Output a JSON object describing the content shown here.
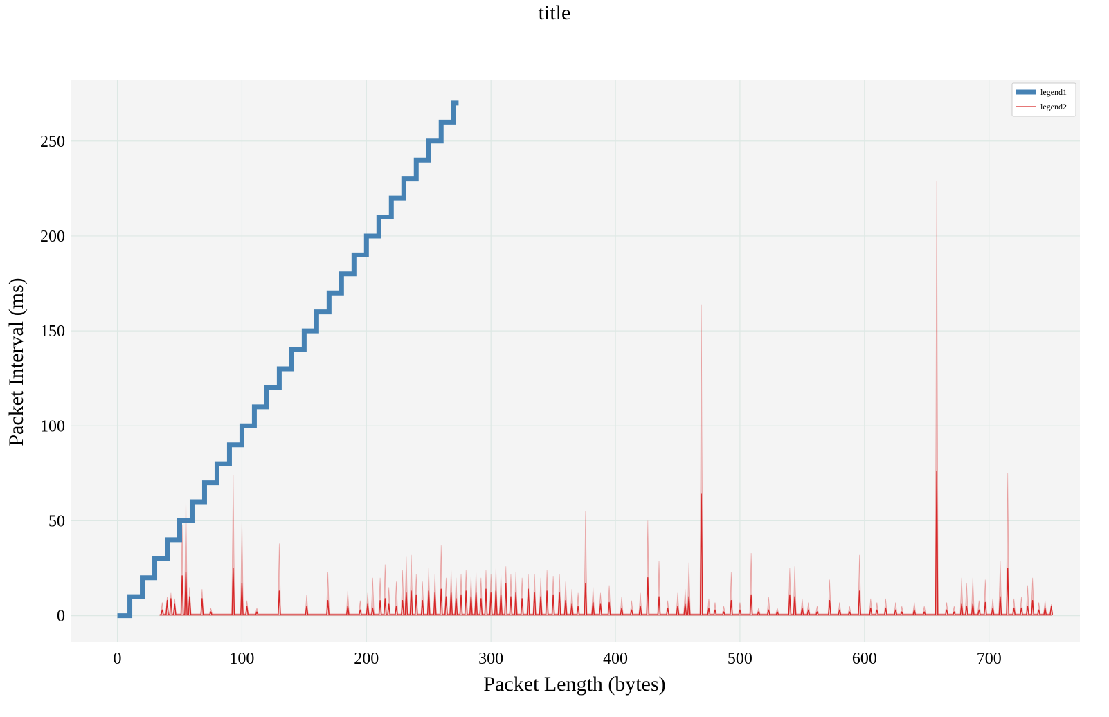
{
  "chart_data": {
    "type": "line",
    "title": "title",
    "xlabel": "Packet Length (bytes)",
    "ylabel": "Packet Interval (ms)",
    "xlim": [
      -37,
      773
    ],
    "ylim": [
      -14,
      282
    ],
    "x_ticks": [
      "0",
      "100",
      "200",
      "300",
      "400",
      "500",
      "600",
      "700"
    ],
    "y_ticks": [
      "0",
      "50",
      "100",
      "150",
      "200",
      "250"
    ],
    "grid": true,
    "legend_position": "top-right",
    "colors": {
      "legend1": "#4682b4",
      "legend2": "#d62728",
      "background": "#f4f4f4",
      "grid": "#dde8e4"
    },
    "series": [
      {
        "name": "legend1",
        "style": "step",
        "x": [
          0,
          10,
          20,
          30,
          40,
          50,
          60,
          70,
          80,
          90,
          100,
          110,
          120,
          130,
          140,
          150,
          160,
          170,
          180,
          190,
          200,
          210,
          220,
          230,
          240,
          250,
          260,
          270,
          274
        ],
        "y": [
          0,
          10,
          20,
          30,
          40,
          50,
          60,
          70,
          80,
          90,
          100,
          110,
          120,
          130,
          140,
          150,
          160,
          170,
          180,
          190,
          200,
          210,
          220,
          230,
          240,
          250,
          260,
          270,
          270
        ]
      },
      {
        "name": "legend2",
        "x_range": [
          34,
          750
        ],
        "baseline": 0.5,
        "spikes": [
          {
            "x": 36,
            "y": 3,
            "upper": 7
          },
          {
            "x": 40,
            "y": 8,
            "upper": 10
          },
          {
            "x": 43,
            "y": 9,
            "upper": 12
          },
          {
            "x": 46,
            "y": 6,
            "upper": 9
          },
          {
            "x": 52,
            "y": 21,
            "upper": 48
          },
          {
            "x": 55,
            "y": 23,
            "upper": 62
          },
          {
            "x": 58,
            "y": 10,
            "upper": 15
          },
          {
            "x": 68,
            "y": 9,
            "upper": 14
          },
          {
            "x": 75,
            "y": 2,
            "upper": 4
          },
          {
            "x": 93,
            "y": 25,
            "upper": 74
          },
          {
            "x": 100,
            "y": 17,
            "upper": 50
          },
          {
            "x": 104,
            "y": 5,
            "upper": 8
          },
          {
            "x": 112,
            "y": 2,
            "upper": 4
          },
          {
            "x": 130,
            "y": 13,
            "upper": 38
          },
          {
            "x": 152,
            "y": 5,
            "upper": 11
          },
          {
            "x": 169,
            "y": 8,
            "upper": 23
          },
          {
            "x": 185,
            "y": 5,
            "upper": 13
          },
          {
            "x": 195,
            "y": 3,
            "upper": 8
          },
          {
            "x": 201,
            "y": 6,
            "upper": 12
          },
          {
            "x": 205,
            "y": 4,
            "upper": 20
          },
          {
            "x": 211,
            "y": 8,
            "upper": 20
          },
          {
            "x": 215,
            "y": 9,
            "upper": 27
          },
          {
            "x": 218,
            "y": 6,
            "upper": 15
          },
          {
            "x": 224,
            "y": 5,
            "upper": 18
          },
          {
            "x": 229,
            "y": 8,
            "upper": 24
          },
          {
            "x": 232,
            "y": 12,
            "upper": 31
          },
          {
            "x": 236,
            "y": 13,
            "upper": 32
          },
          {
            "x": 240,
            "y": 11,
            "upper": 22
          },
          {
            "x": 245,
            "y": 8,
            "upper": 18
          },
          {
            "x": 250,
            "y": 13,
            "upper": 25
          },
          {
            "x": 255,
            "y": 12,
            "upper": 22
          },
          {
            "x": 260,
            "y": 14,
            "upper": 37
          },
          {
            "x": 264,
            "y": 10,
            "upper": 20
          },
          {
            "x": 268,
            "y": 12,
            "upper": 24
          },
          {
            "x": 272,
            "y": 9,
            "upper": 20
          },
          {
            "x": 276,
            "y": 11,
            "upper": 22
          },
          {
            "x": 280,
            "y": 13,
            "upper": 24
          },
          {
            "x": 284,
            "y": 10,
            "upper": 21
          },
          {
            "x": 288,
            "y": 12,
            "upper": 23
          },
          {
            "x": 292,
            "y": 9,
            "upper": 20
          },
          {
            "x": 296,
            "y": 14,
            "upper": 24
          },
          {
            "x": 300,
            "y": 12,
            "upper": 22
          },
          {
            "x": 304,
            "y": 13,
            "upper": 25
          },
          {
            "x": 308,
            "y": 11,
            "upper": 22
          },
          {
            "x": 312,
            "y": 17,
            "upper": 26
          },
          {
            "x": 316,
            "y": 10,
            "upper": 22
          },
          {
            "x": 320,
            "y": 12,
            "upper": 23
          },
          {
            "x": 325,
            "y": 9,
            "upper": 20
          },
          {
            "x": 330,
            "y": 14,
            "upper": 22
          },
          {
            "x": 335,
            "y": 12,
            "upper": 22
          },
          {
            "x": 340,
            "y": 10,
            "upper": 20
          },
          {
            "x": 345,
            "y": 13,
            "upper": 24
          },
          {
            "x": 350,
            "y": 11,
            "upper": 21
          },
          {
            "x": 355,
            "y": 12,
            "upper": 22
          },
          {
            "x": 360,
            "y": 8,
            "upper": 18
          },
          {
            "x": 365,
            "y": 6,
            "upper": 14
          },
          {
            "x": 370,
            "y": 5,
            "upper": 12
          },
          {
            "x": 376,
            "y": 17,
            "upper": 55
          },
          {
            "x": 382,
            "y": 7,
            "upper": 15
          },
          {
            "x": 388,
            "y": 6,
            "upper": 12
          },
          {
            "x": 395,
            "y": 7,
            "upper": 16
          },
          {
            "x": 405,
            "y": 4,
            "upper": 10
          },
          {
            "x": 413,
            "y": 3,
            "upper": 8
          },
          {
            "x": 420,
            "y": 5,
            "upper": 12
          },
          {
            "x": 426,
            "y": 20,
            "upper": 50
          },
          {
            "x": 435,
            "y": 10,
            "upper": 29
          },
          {
            "x": 442,
            "y": 4,
            "upper": 8
          },
          {
            "x": 450,
            "y": 5,
            "upper": 12
          },
          {
            "x": 456,
            "y": 6,
            "upper": 14
          },
          {
            "x": 459,
            "y": 10,
            "upper": 28
          },
          {
            "x": 469,
            "y": 64,
            "upper": 164
          },
          {
            "x": 475,
            "y": 4,
            "upper": 9
          },
          {
            "x": 480,
            "y": 3,
            "upper": 7
          },
          {
            "x": 487,
            "y": 2,
            "upper": 5
          },
          {
            "x": 493,
            "y": 8,
            "upper": 23
          },
          {
            "x": 500,
            "y": 3,
            "upper": 7
          },
          {
            "x": 509,
            "y": 11,
            "upper": 33
          },
          {
            "x": 515,
            "y": 2,
            "upper": 4
          },
          {
            "x": 523,
            "y": 3,
            "upper": 10
          },
          {
            "x": 530,
            "y": 2,
            "upper": 4
          },
          {
            "x": 540,
            "y": 11,
            "upper": 25
          },
          {
            "x": 544,
            "y": 10,
            "upper": 26
          },
          {
            "x": 550,
            "y": 4,
            "upper": 9
          },
          {
            "x": 555,
            "y": 3,
            "upper": 7
          },
          {
            "x": 562,
            "y": 2,
            "upper": 5
          },
          {
            "x": 572,
            "y": 8,
            "upper": 19
          },
          {
            "x": 580,
            "y": 3,
            "upper": 7
          },
          {
            "x": 588,
            "y": 2,
            "upper": 5
          },
          {
            "x": 596,
            "y": 13,
            "upper": 32
          },
          {
            "x": 605,
            "y": 4,
            "upper": 9
          },
          {
            "x": 610,
            "y": 3,
            "upper": 7
          },
          {
            "x": 617,
            "y": 4,
            "upper": 9
          },
          {
            "x": 625,
            "y": 3,
            "upper": 7
          },
          {
            "x": 630,
            "y": 2,
            "upper": 5
          },
          {
            "x": 640,
            "y": 3,
            "upper": 7
          },
          {
            "x": 648,
            "y": 2,
            "upper": 5
          },
          {
            "x": 658,
            "y": 76,
            "upper": 229
          },
          {
            "x": 666,
            "y": 3,
            "upper": 7
          },
          {
            "x": 672,
            "y": 2,
            "upper": 5
          },
          {
            "x": 678,
            "y": 6,
            "upper": 20
          },
          {
            "x": 682,
            "y": 5,
            "upper": 17
          },
          {
            "x": 687,
            "y": 6,
            "upper": 20
          },
          {
            "x": 692,
            "y": 3,
            "upper": 8
          },
          {
            "x": 697,
            "y": 7,
            "upper": 19
          },
          {
            "x": 703,
            "y": 4,
            "upper": 9
          },
          {
            "x": 709,
            "y": 10,
            "upper": 29
          },
          {
            "x": 715,
            "y": 25,
            "upper": 75
          },
          {
            "x": 720,
            "y": 4,
            "upper": 9
          },
          {
            "x": 726,
            "y": 4,
            "upper": 10
          },
          {
            "x": 731,
            "y": 5,
            "upper": 16
          },
          {
            "x": 735,
            "y": 8,
            "upper": 20
          },
          {
            "x": 740,
            "y": 3,
            "upper": 7
          },
          {
            "x": 745,
            "y": 4,
            "upper": 8
          },
          {
            "x": 750,
            "y": 5,
            "upper": 6
          }
        ]
      }
    ]
  }
}
